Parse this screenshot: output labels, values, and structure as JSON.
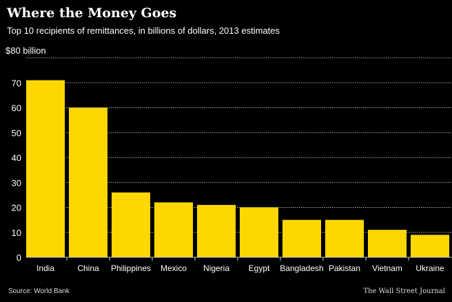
{
  "chart_data": {
    "type": "bar",
    "title": "Where the Money Goes",
    "subtitle": "Top 10 recipients of remittances, in billions of dollars, 2013 estimates",
    "categories": [
      "India",
      "China",
      "Philippines",
      "Mexico",
      "Nigeria",
      "Egypt",
      "Bangladesh",
      "Pakistan",
      "Vietnam",
      "Ukraine"
    ],
    "values": [
      71,
      60,
      26,
      22,
      21,
      20,
      15,
      15,
      11,
      9
    ],
    "ylim": [
      0,
      80
    ],
    "yticks": [
      0,
      10,
      20,
      30,
      40,
      50,
      60,
      70,
      80
    ],
    "ytick_labels": [
      "0",
      "10",
      "20",
      "30",
      "40",
      "50",
      "60",
      "70",
      "$80 billion"
    ],
    "xlabel": "",
    "ylabel": "",
    "grid": true,
    "bar_color": "#FFD700",
    "source": "Source: World Bank",
    "credit": "The Wall Street Journal"
  }
}
